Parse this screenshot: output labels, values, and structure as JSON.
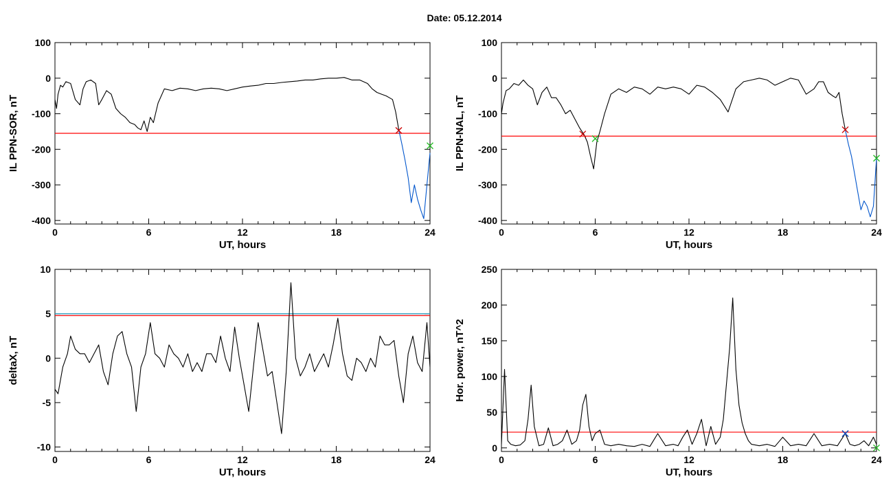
{
  "page": {
    "title": "Date:  05.12.2014"
  },
  "colors": {
    "data": "#000000",
    "threshold": "#ff0000",
    "highlight": "#0055cc",
    "marker_red": "#cc0000",
    "marker_green": "#22bb22",
    "threshold_alt": "#2299bb"
  },
  "chart_data": [
    {
      "id": "sor",
      "type": "line",
      "xlabel": "UT, hours",
      "ylabel": "IL PPN-SOR, nT",
      "xlim": [
        0,
        24
      ],
      "ylim": [
        -410,
        100
      ],
      "xticks": [
        0,
        6,
        12,
        18,
        24
      ],
      "yticks": [
        -400,
        -300,
        -200,
        -100,
        0,
        100
      ],
      "threshold": -155,
      "series": [
        {
          "x": [
            0,
            0.1,
            0.2,
            0.35,
            0.5,
            0.7,
            1.0,
            1.3,
            1.6,
            1.8,
            2.0,
            2.3,
            2.6,
            2.8,
            3.0,
            3.3,
            3.6,
            3.9,
            4.2,
            4.5,
            4.8,
            5.1,
            5.3,
            5.5,
            5.7,
            5.9,
            6.1,
            6.3,
            6.6,
            7.0,
            7.5,
            8,
            8.5,
            9,
            9.5,
            10,
            10.5,
            11,
            11.5,
            12,
            12.5,
            13,
            13.5,
            14,
            14.5,
            15,
            15.5,
            16,
            16.5,
            17,
            17.5,
            18,
            18.5,
            19,
            19.5,
            20,
            20.3,
            20.6,
            20.9,
            21.2,
            21.4,
            21.6,
            21.8,
            22.0
          ],
          "y": [
            -60,
            -85,
            -45,
            -20,
            -25,
            -10,
            -15,
            -60,
            -75,
            -30,
            -10,
            -5,
            -15,
            -75,
            -60,
            -35,
            -45,
            -85,
            -100,
            -110,
            -125,
            -130,
            -140,
            -145,
            -120,
            -150,
            -110,
            -125,
            -70,
            -30,
            -35,
            -28,
            -30,
            -35,
            -30,
            -28,
            -30,
            -35,
            -30,
            -25,
            -22,
            -20,
            -15,
            -15,
            -12,
            -10,
            -8,
            -5,
            -5,
            -2,
            0,
            0,
            2,
            -5,
            -5,
            -15,
            -30,
            -40,
            -45,
            -50,
            -55,
            -60,
            -95,
            -145
          ]
        },
        {
          "x": [
            22.0,
            22.2,
            22.4,
            22.6,
            22.8,
            23.0,
            23.2,
            23.4,
            23.6,
            23.8,
            24.0
          ],
          "y": [
            -145,
            -185,
            -230,
            -280,
            -350,
            -300,
            -340,
            -370,
            -395,
            -300,
            -210
          ]
        }
      ],
      "markers": [
        {
          "x": 22.0,
          "y": -147,
          "color": "red"
        },
        {
          "x": 24.0,
          "y": -190,
          "color": "green"
        }
      ]
    },
    {
      "id": "nal",
      "type": "line",
      "xlabel": "UT, hours",
      "ylabel": "IL PPN-NAL, nT",
      "xlim": [
        0,
        24
      ],
      "ylim": [
        -410,
        100
      ],
      "xticks": [
        0,
        6,
        12,
        18,
        24
      ],
      "yticks": [
        -400,
        -300,
        -200,
        -100,
        0,
        100
      ],
      "threshold": -163,
      "series": [
        {
          "x": [
            0,
            0.1,
            0.3,
            0.5,
            0.8,
            1.1,
            1.4,
            1.7,
            2.0,
            2.3,
            2.6,
            2.9,
            3.2,
            3.5,
            3.8,
            4.1,
            4.4,
            4.7,
            5.0,
            5.3,
            5.5,
            5.7,
            5.9,
            6.1,
            6.3,
            6.6,
            7.0,
            7.5,
            8,
            8.5,
            9,
            9.5,
            10,
            10.5,
            11,
            11.5,
            12,
            12.5,
            13,
            13.5,
            14,
            14.5,
            15,
            15.5,
            16,
            16.5,
            17,
            17.5,
            18,
            18.5,
            19,
            19.5,
            20,
            20.3,
            20.6,
            20.9,
            21.2,
            21.4,
            21.6,
            21.8,
            22.0
          ],
          "y": [
            -100,
            -70,
            -35,
            -30,
            -15,
            -20,
            -5,
            -20,
            -30,
            -75,
            -40,
            -25,
            -55,
            -55,
            -75,
            -100,
            -90,
            -115,
            -140,
            -160,
            -180,
            -220,
            -255,
            -180,
            -150,
            -100,
            -45,
            -30,
            -40,
            -25,
            -30,
            -45,
            -25,
            -30,
            -25,
            -30,
            -45,
            -20,
            -25,
            -40,
            -60,
            -95,
            -30,
            -10,
            -5,
            0,
            -5,
            -20,
            -10,
            0,
            -5,
            -45,
            -30,
            -10,
            -10,
            -40,
            -50,
            -55,
            -40,
            -100,
            -145
          ]
        },
        {
          "x": [
            22.0,
            22.2,
            22.4,
            22.6,
            22.8,
            23.0,
            23.2,
            23.4,
            23.6,
            23.8,
            24.0
          ],
          "y": [
            -145,
            -185,
            -220,
            -270,
            -320,
            -370,
            -345,
            -360,
            -390,
            -360,
            -225
          ]
        }
      ],
      "markers": [
        {
          "x": 5.2,
          "y": -157,
          "color": "red"
        },
        {
          "x": 6.0,
          "y": -170,
          "color": "green"
        },
        {
          "x": 22.0,
          "y": -145,
          "color": "red"
        },
        {
          "x": 24.0,
          "y": -225,
          "color": "green"
        }
      ]
    },
    {
      "id": "deltax",
      "type": "line",
      "xlabel": "UT, hours",
      "ylabel": "deltaX, nT",
      "xlim": [
        0,
        24
      ],
      "ylim": [
        -10.5,
        10
      ],
      "xticks": [
        0,
        6,
        12,
        18,
        24
      ],
      "yticks": [
        -10,
        -5,
        0,
        5,
        10
      ],
      "threshold": 4.8,
      "threshold_alt": 5.0,
      "series": [
        {
          "x": [
            0,
            0.2,
            0.5,
            0.8,
            1.0,
            1.3,
            1.6,
            1.9,
            2.2,
            2.5,
            2.8,
            3.1,
            3.4,
            3.7,
            4.0,
            4.3,
            4.6,
            4.9,
            5.2,
            5.5,
            5.8,
            6.1,
            6.4,
            6.7,
            7.0,
            7.3,
            7.6,
            7.9,
            8.2,
            8.5,
            8.8,
            9.1,
            9.4,
            9.7,
            10.0,
            10.3,
            10.6,
            10.9,
            11.2,
            11.5,
            11.8,
            12.1,
            12.4,
            12.7,
            13.0,
            13.3,
            13.6,
            13.9,
            14.2,
            14.5,
            14.8,
            15.1,
            15.4,
            15.7,
            16.0,
            16.3,
            16.6,
            16.9,
            17.2,
            17.5,
            17.8,
            18.1,
            18.4,
            18.7,
            19.0,
            19.3,
            19.6,
            19.9,
            20.2,
            20.5,
            20.8,
            21.1,
            21.4,
            21.7,
            22.0,
            22.3,
            22.6,
            22.9,
            23.2,
            23.5,
            23.8,
            24.0
          ],
          "y": [
            -3.5,
            -4.0,
            -1.0,
            0.5,
            2.5,
            1.0,
            0.5,
            0.5,
            -0.5,
            0.5,
            1.5,
            -1.5,
            -3.0,
            0.5,
            2.5,
            3.0,
            0.5,
            -1.0,
            -6.0,
            -1.0,
            0.5,
            4.0,
            0.5,
            0,
            -1.0,
            1.5,
            0.5,
            0,
            -1.0,
            0.5,
            -1.5,
            -0.5,
            -1.5,
            0.5,
            0.5,
            -0.5,
            2.5,
            0,
            -1.5,
            3.5,
            0,
            -3.0,
            -6.0,
            -1.0,
            4.0,
            1.0,
            -2.0,
            -1.5,
            -5.0,
            -8.5,
            -1.5,
            8.5,
            0,
            -2.0,
            -1.0,
            0.5,
            -1.5,
            -0.5,
            0.5,
            -1.0,
            1.5,
            4.5,
            0.5,
            -2.0,
            -2.5,
            0,
            -0.5,
            -1.5,
            0,
            -1.0,
            2.5,
            1.5,
            1.5,
            2.0,
            -2.0,
            -5.0,
            0.5,
            2.5,
            -0.5,
            -1.5,
            4.0,
            -1.0
          ]
        }
      ],
      "markers": []
    },
    {
      "id": "power",
      "type": "line",
      "xlabel": "UT, hours",
      "ylabel": "Hor. power, nT^2",
      "xlim": [
        0,
        24
      ],
      "ylim": [
        -5,
        250
      ],
      "xticks": [
        0,
        6,
        12,
        18,
        24
      ],
      "yticks": [
        0,
        50,
        100,
        150,
        200,
        250
      ],
      "threshold": 22,
      "series": [
        {
          "x": [
            0,
            0.2,
            0.4,
            0.6,
            0.9,
            1.2,
            1.5,
            1.7,
            1.9,
            2.1,
            2.4,
            2.7,
            3.0,
            3.3,
            3.6,
            3.9,
            4.2,
            4.5,
            4.8,
            5.0,
            5.2,
            5.4,
            5.6,
            5.8,
            6.0,
            6.3,
            6.6,
            7.0,
            7.5,
            8.0,
            8.5,
            9.0,
            9.5,
            10.0,
            10.5,
            11.0,
            11.3,
            11.6,
            11.9,
            12.2,
            12.5,
            12.8,
            13.1,
            13.4,
            13.7,
            14.0,
            14.2,
            14.4,
            14.6,
            14.8,
            15.0,
            15.2,
            15.4,
            15.6,
            15.8,
            16.0,
            16.5,
            17.0,
            17.5,
            18.0,
            18.5,
            19.0,
            19.5,
            20.0,
            20.5,
            21.0,
            21.5,
            22.0,
            22.3,
            22.6,
            22.9,
            23.2,
            23.5,
            23.8,
            24.0
          ],
          "y": [
            5,
            110,
            10,
            5,
            3,
            4,
            10,
            40,
            88,
            30,
            3,
            5,
            28,
            3,
            5,
            10,
            25,
            5,
            10,
            25,
            60,
            75,
            30,
            10,
            20,
            25,
            5,
            3,
            5,
            3,
            2,
            5,
            2,
            20,
            3,
            5,
            3,
            15,
            25,
            5,
            20,
            40,
            3,
            30,
            5,
            15,
            40,
            90,
            140,
            210,
            110,
            60,
            35,
            20,
            10,
            5,
            3,
            5,
            2,
            15,
            3,
            5,
            3,
            20,
            3,
            5,
            3,
            20,
            5,
            3,
            5,
            10,
            3,
            15,
            5
          ]
        }
      ],
      "markers": [
        {
          "x": 22.0,
          "y": 20,
          "color": "red"
        },
        {
          "x": 22.0,
          "y": 20,
          "color": "highlight"
        },
        {
          "x": 24.0,
          "y": 0,
          "color": "green"
        }
      ]
    }
  ]
}
